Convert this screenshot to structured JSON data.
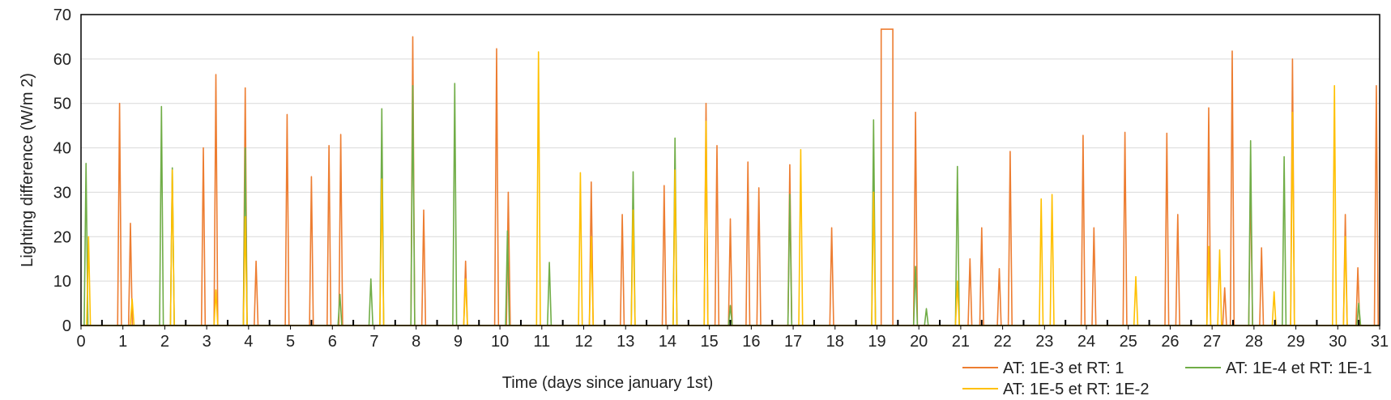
{
  "chart_data": {
    "type": "line",
    "xlabel": "Time (days since january 1st)",
    "ylabel": "Lighting difference (W/m 2)",
    "xlim": [
      0,
      31
    ],
    "ylim": [
      0,
      70
    ],
    "xticks": [
      0,
      1,
      2,
      3,
      4,
      5,
      6,
      7,
      8,
      9,
      10,
      11,
      12,
      13,
      14,
      15,
      16,
      17,
      18,
      19,
      20,
      21,
      22,
      23,
      24,
      25,
      26,
      27,
      28,
      29,
      30,
      31
    ],
    "yticks": [
      0,
      10,
      20,
      30,
      40,
      50,
      60,
      70
    ],
    "grid": "horizontal",
    "legend_position": "bottom-right",
    "series": [
      {
        "name": "AT: 1E-3 et RT: 1",
        "color": "#ED7D31",
        "spikes": [
          {
            "x": 0.92,
            "y": 50
          },
          {
            "x": 1.18,
            "y": 23
          },
          {
            "x": 2.92,
            "y": 40
          },
          {
            "x": 3.22,
            "y": 56.5
          },
          {
            "x": 3.92,
            "y": 53.5
          },
          {
            "x": 4.18,
            "y": 14.5
          },
          {
            "x": 4.92,
            "y": 47.5
          },
          {
            "x": 5.5,
            "y": 33.5
          },
          {
            "x": 5.92,
            "y": 40.5
          },
          {
            "x": 6.2,
            "y": 43
          },
          {
            "x": 7.92,
            "y": 65
          },
          {
            "x": 8.18,
            "y": 26
          },
          {
            "x": 9.18,
            "y": 14.5
          },
          {
            "x": 9.92,
            "y": 62.3
          },
          {
            "x": 10.2,
            "y": 30
          },
          {
            "x": 12.18,
            "y": 32.3
          },
          {
            "x": 12.92,
            "y": 25
          },
          {
            "x": 13.92,
            "y": 31.5
          },
          {
            "x": 14.92,
            "y": 50
          },
          {
            "x": 15.18,
            "y": 40.5
          },
          {
            "x": 15.5,
            "y": 24
          },
          {
            "x": 15.92,
            "y": 36.8
          },
          {
            "x": 16.18,
            "y": 31
          },
          {
            "x": 16.92,
            "y": 36.2
          },
          {
            "x": 17.92,
            "y": 22
          },
          {
            "x": 19.92,
            "y": 48
          },
          {
            "x": 21.22,
            "y": 15
          },
          {
            "x": 21.5,
            "y": 22
          },
          {
            "x": 21.92,
            "y": 12.8
          },
          {
            "x": 22.18,
            "y": 39.2
          },
          {
            "x": 23.92,
            "y": 42.8
          },
          {
            "x": 24.18,
            "y": 22
          },
          {
            "x": 24.92,
            "y": 43.5
          },
          {
            "x": 25.92,
            "y": 43.3
          },
          {
            "x": 26.18,
            "y": 25
          },
          {
            "x": 26.92,
            "y": 49
          },
          {
            "x": 27.3,
            "y": 8.5
          },
          {
            "x": 27.48,
            "y": 61.8
          },
          {
            "x": 27.92,
            "y": 33
          },
          {
            "x": 28.18,
            "y": 17.5
          },
          {
            "x": 28.92,
            "y": 60
          },
          {
            "x": 30.18,
            "y": 25
          },
          {
            "x": 30.48,
            "y": 13
          },
          {
            "x": 30.92,
            "y": 54
          }
        ],
        "plateaus": [
          {
            "x_start": 19.1,
            "x_end": 19.38,
            "y": 66.7
          }
        ]
      },
      {
        "name": "AT: 1E-4 et RT: 1E-1",
        "color": "#70AD47",
        "spikes": [
          {
            "x": 0.12,
            "y": 36.5
          },
          {
            "x": 1.92,
            "y": 49.3
          },
          {
            "x": 2.18,
            "y": 35.5
          },
          {
            "x": 3.92,
            "y": 40
          },
          {
            "x": 6.18,
            "y": 7
          },
          {
            "x": 6.92,
            "y": 10.5
          },
          {
            "x": 7.18,
            "y": 48.8
          },
          {
            "x": 7.92,
            "y": 54
          },
          {
            "x": 8.92,
            "y": 54.5
          },
          {
            "x": 10.18,
            "y": 21.3
          },
          {
            "x": 11.18,
            "y": 14.2
          },
          {
            "x": 13.18,
            "y": 34.6
          },
          {
            "x": 14.18,
            "y": 42.2
          },
          {
            "x": 15.5,
            "y": 4.5
          },
          {
            "x": 16.92,
            "y": 29.5
          },
          {
            "x": 18.92,
            "y": 46.3
          },
          {
            "x": 19.92,
            "y": 13.3
          },
          {
            "x": 20.18,
            "y": 3.8
          },
          {
            "x": 20.92,
            "y": 35.8
          },
          {
            "x": 27.92,
            "y": 41.6
          },
          {
            "x": 28.72,
            "y": 38
          },
          {
            "x": 30.5,
            "y": 5
          }
        ],
        "plateaus": []
      },
      {
        "name": "AT: 1E-5 et RT: 1E-2",
        "color": "#FFC000",
        "spikes": [
          {
            "x": 0.18,
            "y": 20
          },
          {
            "x": 1.22,
            "y": 6
          },
          {
            "x": 2.18,
            "y": 35
          },
          {
            "x": 3.22,
            "y": 8
          },
          {
            "x": 3.92,
            "y": 24.5
          },
          {
            "x": 7.18,
            "y": 33
          },
          {
            "x": 9.18,
            "y": 10.5
          },
          {
            "x": 10.92,
            "y": 61.6
          },
          {
            "x": 11.92,
            "y": 34.4
          },
          {
            "x": 12.18,
            "y": 20
          },
          {
            "x": 13.18,
            "y": 26
          },
          {
            "x": 14.18,
            "y": 35
          },
          {
            "x": 14.92,
            "y": 46
          },
          {
            "x": 17.18,
            "y": 39.6
          },
          {
            "x": 18.92,
            "y": 30
          },
          {
            "x": 20.92,
            "y": 10
          },
          {
            "x": 22.92,
            "y": 28.5
          },
          {
            "x": 23.18,
            "y": 29.5
          },
          {
            "x": 25.18,
            "y": 11
          },
          {
            "x": 26.92,
            "y": 17.8
          },
          {
            "x": 27.18,
            "y": 17
          },
          {
            "x": 28.48,
            "y": 7.6
          },
          {
            "x": 28.92,
            "y": 48
          },
          {
            "x": 29.92,
            "y": 54
          },
          {
            "x": 30.18,
            "y": 20
          }
        ],
        "plateaus": []
      }
    ]
  }
}
